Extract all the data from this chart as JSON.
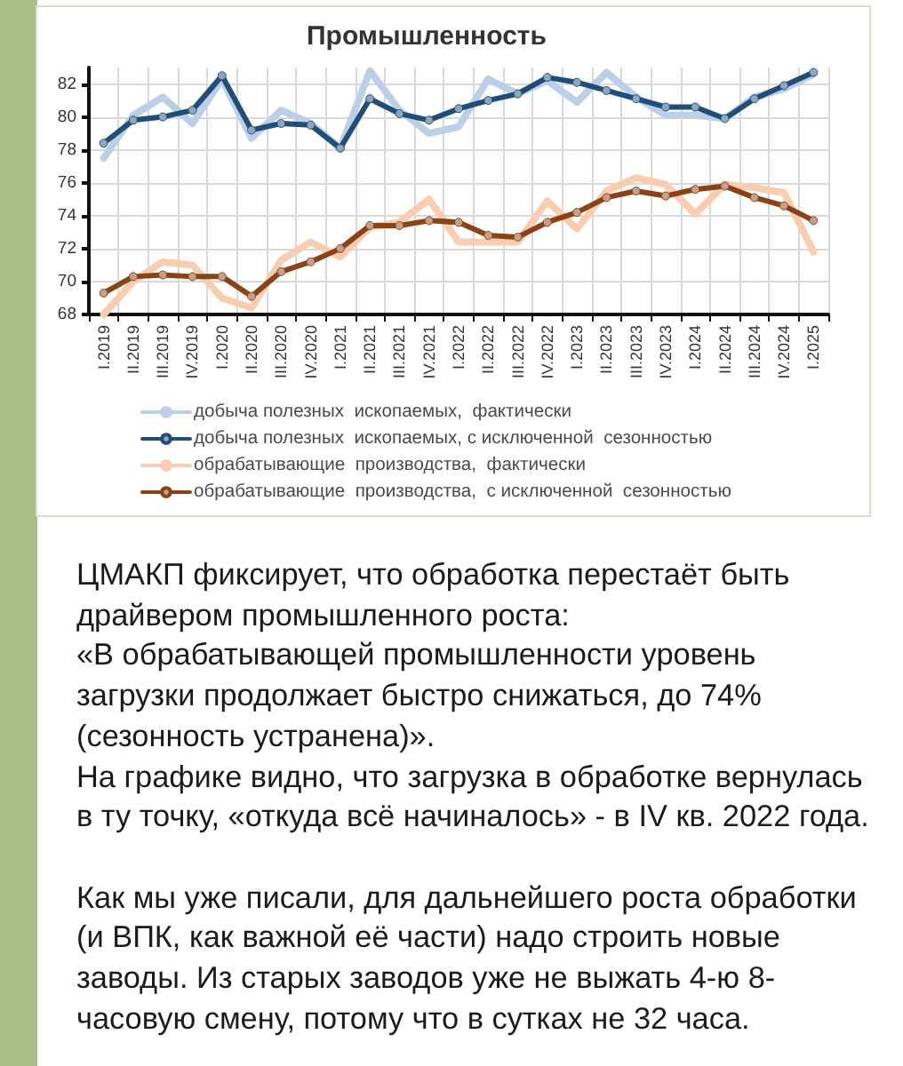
{
  "chart_data": {
    "type": "line",
    "title": "Промышленность",
    "categories": [
      "I.2019",
      "II.2019",
      "III.2019",
      "IV.2019",
      "I.2020",
      "II.2020",
      "III.2020",
      "IV.2020",
      "I.2021",
      "II.2021",
      "III.2021",
      "IV.2021",
      "I.2022",
      "II.2022",
      "III.2022",
      "IV.2022",
      "I.2023",
      "II.2023",
      "III.2023",
      "IV.2023",
      "I.2024",
      "II.2024",
      "III.2024",
      "IV.2024",
      "I.2025"
    ],
    "series": [
      {
        "name": "добыча полезных  ископаемых,  фактически",
        "color": "#bccfe6",
        "marker": "none",
        "values": [
          77.5,
          80.1,
          81.2,
          79.6,
          82.3,
          78.7,
          80.4,
          79.6,
          78.1,
          82.8,
          80.4,
          79.0,
          79.4,
          82.3,
          81.4,
          82.2,
          80.9,
          82.7,
          81.2,
          80.1,
          80.1,
          79.9,
          81.2,
          81.7,
          82.6
        ]
      },
      {
        "name": "добыча полезных  ископаемых, с исключенной  сезонностью",
        "color": "#1f4e79",
        "marker": "circle",
        "values": [
          78.4,
          79.8,
          80.0,
          80.4,
          82.5,
          79.2,
          79.6,
          79.5,
          78.1,
          81.1,
          80.2,
          79.8,
          80.5,
          81.0,
          81.4,
          82.4,
          82.1,
          81.6,
          81.1,
          80.6,
          80.6,
          79.9,
          81.1,
          81.9,
          82.7
        ]
      },
      {
        "name": "обрабатывающие  производства,  фактически",
        "color": "#f8cdb0",
        "marker": "none",
        "values": [
          68.0,
          70.0,
          71.2,
          71.0,
          69.0,
          68.4,
          71.3,
          72.4,
          71.5,
          73.3,
          73.6,
          75.0,
          72.4,
          72.4,
          72.4,
          74.9,
          73.2,
          75.5,
          76.3,
          75.9,
          74.1,
          75.9,
          75.7,
          75.4,
          71.8
        ]
      },
      {
        "name": "обрабатывающие  производства,  с исключенной  сезонностью",
        "color": "#8a4317",
        "marker": "circle",
        "values": [
          69.3,
          70.3,
          70.4,
          70.3,
          70.3,
          69.1,
          70.6,
          71.2,
          72.0,
          73.4,
          73.4,
          73.7,
          73.6,
          72.8,
          72.7,
          73.6,
          74.2,
          75.1,
          75.5,
          75.2,
          75.6,
          75.8,
          75.1,
          74.6,
          73.7
        ]
      }
    ],
    "ylim": [
      68,
      83
    ],
    "yticks": [
      68,
      70,
      72,
      74,
      76,
      78,
      80,
      82
    ],
    "grid": true,
    "legend": "bottom",
    "annotations": [
      "ЦМАКП фиксирует, что обработка перестаёт быть драйвером промышленного роста:\n«В обрабатывающей промышленности уровень загрузки продолжает быстро снижаться, до 74% (сезонность устранена)».\nНа графике видно, что загрузка в обработке вернулась в ту точку, «откуда всё начиналось» - в IV кв. 2022 года.",
      "Как мы уже писали, для дальнейшего роста обработки (и ВПК, как важной её части) надо строить новые заводы. Из старых заводов уже не выжать 4-ю 8-часовую смену, потому что в сутках не 32 часа."
    ]
  }
}
